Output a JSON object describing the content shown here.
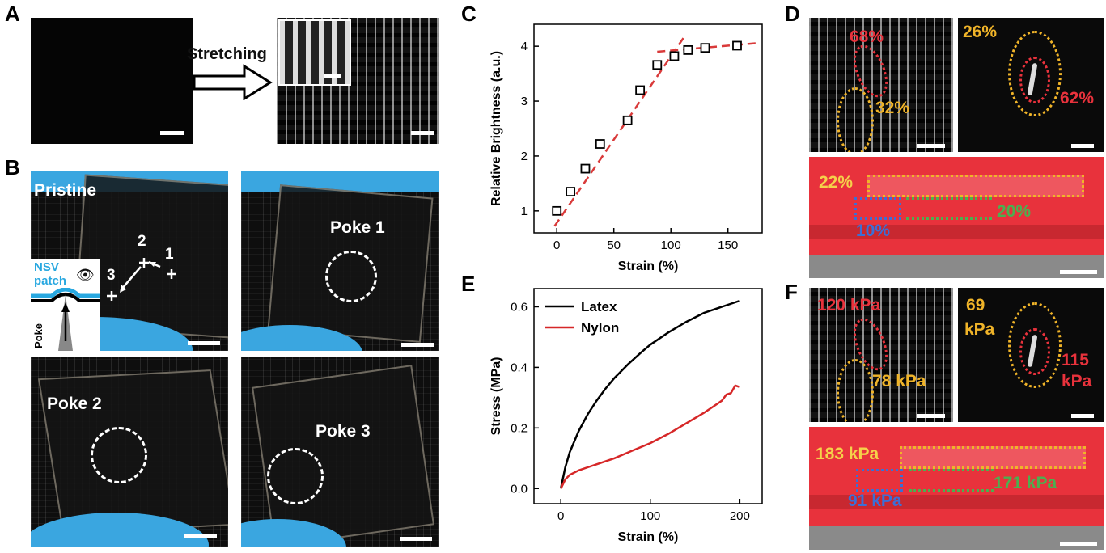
{
  "panels": {
    "A": "A",
    "B": "B",
    "C": "C",
    "D": "D",
    "E": "E",
    "F": "F"
  },
  "panel_a": {
    "arrow_label": "Stretching"
  },
  "panel_b": {
    "pristine": "Pristine",
    "poke1": "Poke 1",
    "poke2": "Poke 2",
    "poke3": "Poke 3",
    "pt1": "1",
    "pt2": "2",
    "pt3": "3",
    "inset_label_1": "NSV",
    "inset_label_2": "patch",
    "inset_poke": "Poke"
  },
  "panel_d": {
    "top_left_red": "68%",
    "top_left_yellow": "32%",
    "top_right_yellow": "26%",
    "top_right_red": "62%",
    "bottom_yellow": "22%",
    "bottom_blue": "10%",
    "bottom_green": "20%"
  },
  "panel_f": {
    "top_left_red": "120 kPa",
    "top_left_yellow": "78 kPa",
    "top_right_yellow_1": "69",
    "top_right_yellow_2": "kPa",
    "top_right_red_1": "115",
    "top_right_red_2": "kPa",
    "bottom_yellow": "183 kPa",
    "bottom_blue": "91 kPa",
    "bottom_green": "171 kPa"
  },
  "colors": {
    "red": "#e8323c",
    "yellow": "#f0b429",
    "blue": "#3b6fd6",
    "green": "#4caf50",
    "fit_line": "#d93a3a",
    "nylon": "#d62728",
    "latex": "#000000"
  },
  "chart_data": [
    {
      "type": "scatter",
      "panel": "C",
      "xlabel": "Strain (%)",
      "ylabel": "Relative Brightness (a.u.)",
      "xlim": [
        -20,
        180
      ],
      "ylim": [
        0.6,
        4.4
      ],
      "xticks": [
        0,
        50,
        100,
        150
      ],
      "yticks": [
        1,
        2,
        3,
        4
      ],
      "points": [
        {
          "x": 0,
          "y": 1.0
        },
        {
          "x": 12,
          "y": 1.35
        },
        {
          "x": 25,
          "y": 1.77
        },
        {
          "x": 38,
          "y": 2.22
        },
        {
          "x": 62,
          "y": 2.65
        },
        {
          "x": 73,
          "y": 3.2
        },
        {
          "x": 88,
          "y": 3.66
        },
        {
          "x": 103,
          "y": 3.82
        },
        {
          "x": 115,
          "y": 3.93
        },
        {
          "x": 130,
          "y": 3.97
        },
        {
          "x": 158,
          "y": 4.01
        }
      ],
      "fit_lines": [
        {
          "x": [
            -2,
            112
          ],
          "y": [
            0.72,
            4.18
          ]
        },
        {
          "x": [
            88,
            178
          ],
          "y": [
            3.9,
            4.06
          ]
        }
      ]
    },
    {
      "type": "line",
      "panel": "E",
      "xlabel": "Strain (%)",
      "ylabel": "Stress (MPa)",
      "xlim": [
        -30,
        225
      ],
      "ylim": [
        -0.05,
        0.66
      ],
      "xticks": [
        0,
        100,
        200
      ],
      "yticks": [
        "0.0",
        "0.2",
        "0.4",
        "0.6"
      ],
      "legend_position": "top-left",
      "series": [
        {
          "name": "Latex",
          "x": [
            0,
            5,
            10,
            20,
            30,
            40,
            50,
            60,
            75,
            90,
            100,
            120,
            140,
            160,
            180,
            200
          ],
          "y": [
            0,
            0.07,
            0.12,
            0.19,
            0.245,
            0.29,
            0.33,
            0.365,
            0.41,
            0.45,
            0.475,
            0.515,
            0.55,
            0.58,
            0.6,
            0.62
          ]
        },
        {
          "name": "Nylon",
          "x": [
            0,
            5,
            10,
            20,
            30,
            40,
            60,
            80,
            100,
            120,
            140,
            160,
            170,
            180,
            185,
            190,
            195,
            200
          ],
          "y": [
            0,
            0.03,
            0.045,
            0.06,
            0.07,
            0.08,
            0.1,
            0.125,
            0.15,
            0.18,
            0.215,
            0.25,
            0.27,
            0.29,
            0.31,
            0.315,
            0.34,
            0.335
          ]
        }
      ]
    }
  ]
}
